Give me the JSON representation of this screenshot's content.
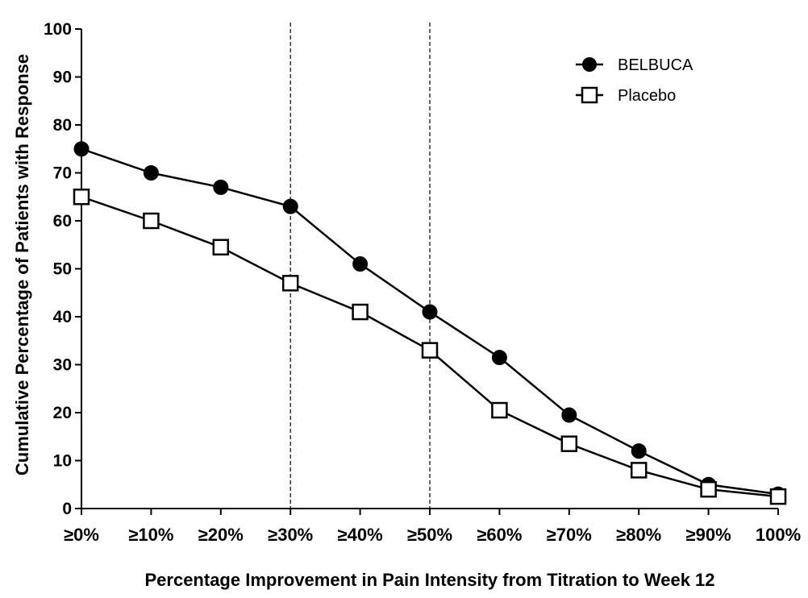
{
  "chart_data": {
    "type": "line",
    "title": "",
    "xlabel": "Percentage Improvement in Pain Intensity from Titration to Week 12",
    "ylabel": "Cumulative Percentage of Patients with Response",
    "categories": [
      "≥0%",
      "≥10%",
      "≥20%",
      "≥30%",
      "≥40%",
      "≥50%",
      "≥60%",
      "≥70%",
      "≥80%",
      "≥90%",
      "100%"
    ],
    "ylim": [
      0,
      100
    ],
    "yticks": [
      0,
      10,
      20,
      30,
      40,
      50,
      60,
      70,
      80,
      90,
      100
    ],
    "reference_lines_at": [
      "≥30%",
      "≥50%"
    ],
    "grid": false,
    "legend_position": "top-right",
    "series": [
      {
        "name": "BELBUCA",
        "marker": "filled-circle",
        "color": "#000000",
        "values": [
          75,
          70,
          67,
          63,
          51,
          41,
          31.5,
          19.5,
          12,
          5,
          3
        ]
      },
      {
        "name": "Placebo",
        "marker": "open-square",
        "color": "#000000",
        "values": [
          65,
          60,
          54.5,
          47,
          41,
          33,
          20.5,
          13.5,
          8,
          4,
          2.5
        ]
      }
    ]
  }
}
